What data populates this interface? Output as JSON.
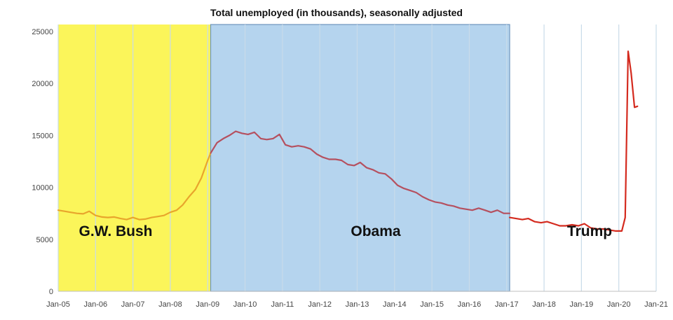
{
  "chart_data": {
    "type": "line",
    "title": "Total unemployed (in thousands), seasonally adjusted",
    "xlabel": "",
    "ylabel": "",
    "x_ticks": [
      "Jan-05",
      "Jan-06",
      "Jan-07",
      "Jan-08",
      "Jan-09",
      "Jan-10",
      "Jan-11",
      "Jan-12",
      "Jan-13",
      "Jan-14",
      "Jan-15",
      "Jan-16",
      "Jan-17",
      "Jan-18",
      "Jan-19",
      "Jan-20",
      "Jan-21"
    ],
    "xlim": [
      2005.0,
      2021.0
    ],
    "y_ticks": [
      0,
      5000,
      10000,
      15000,
      20000,
      25000
    ],
    "ylim": [
      0,
      25000
    ],
    "grid": "vertical",
    "colors": {
      "bush_band": "#fbf55a",
      "obama_band": "#b5d4ee",
      "obama_border": "#6e95bd",
      "bush_line": "#e8a52c",
      "obama_line": "#b5505f",
      "trump_line": "#d42a1e",
      "grid": "#c9dbe9"
    },
    "eras": [
      {
        "label": "G.W. Bush",
        "start": 2005.0,
        "end": 2009.08
      },
      {
        "label": "Obama",
        "start": 2009.08,
        "end": 2017.08
      },
      {
        "label": "Trump",
        "start": 2017.08,
        "end": 2021.0
      }
    ],
    "series": [
      {
        "x": [
          2005.0,
          2005.17,
          2005.33,
          2005.5,
          2005.67,
          2005.83,
          2006.0,
          2006.17,
          2006.33,
          2006.5,
          2006.67,
          2006.83,
          2007.0,
          2007.17,
          2007.33,
          2007.5,
          2007.67,
          2007.83,
          2008.0,
          2008.17,
          2008.33,
          2008.5,
          2008.67,
          2008.83,
          2009.0,
          2009.08
        ],
        "y": [
          7800,
          7700,
          7600,
          7500,
          7450,
          7700,
          7300,
          7150,
          7100,
          7150,
          7000,
          6900,
          7100,
          6900,
          6950,
          7100,
          7200,
          7300,
          7600,
          7800,
          8300,
          9100,
          9800,
          10900,
          12600,
          13300
        ]
      },
      {
        "x": [
          2009.08,
          2009.25,
          2009.42,
          2009.58,
          2009.75,
          2009.92,
          2010.08,
          2010.25,
          2010.42,
          2010.58,
          2010.75,
          2010.92,
          2011.08,
          2011.25,
          2011.42,
          2011.58,
          2011.75,
          2011.92,
          2012.08,
          2012.25,
          2012.42,
          2012.58,
          2012.75,
          2012.92,
          2013.08,
          2013.25,
          2013.42,
          2013.58,
          2013.75,
          2013.92,
          2014.08,
          2014.25,
          2014.42,
          2014.58,
          2014.75,
          2014.92,
          2015.08,
          2015.25,
          2015.42,
          2015.58,
          2015.75,
          2015.92,
          2016.08,
          2016.25,
          2016.42,
          2016.58,
          2016.75,
          2016.92,
          2017.08
        ],
        "y": [
          13300,
          14300,
          14700,
          15000,
          15400,
          15200,
          15100,
          15300,
          14700,
          14600,
          14700,
          15100,
          14100,
          13900,
          14000,
          13900,
          13700,
          13200,
          12900,
          12700,
          12700,
          12600,
          12200,
          12100,
          12400,
          11900,
          11700,
          11400,
          11300,
          10800,
          10200,
          9900,
          9700,
          9500,
          9100,
          8800,
          8600,
          8500,
          8300,
          8200,
          8000,
          7900,
          7800,
          8000,
          7800,
          7600,
          7800,
          7500,
          7500
        ]
      },
      {
        "x": [
          2017.08,
          2017.25,
          2017.42,
          2017.58,
          2017.75,
          2017.92,
          2018.08,
          2018.25,
          2018.42,
          2018.58,
          2018.75,
          2018.92,
          2019.08,
          2019.25,
          2019.42,
          2019.58,
          2019.75,
          2019.92,
          2020.08,
          2020.17,
          2020.25,
          2020.33,
          2020.42,
          2020.5
        ],
        "y": [
          7100,
          7000,
          6900,
          7000,
          6700,
          6600,
          6700,
          6500,
          6300,
          6300,
          6400,
          6300,
          6500,
          6100,
          6000,
          6000,
          5900,
          5800,
          5800,
          7100,
          23100,
          21000,
          17700,
          17800
        ]
      }
    ]
  }
}
